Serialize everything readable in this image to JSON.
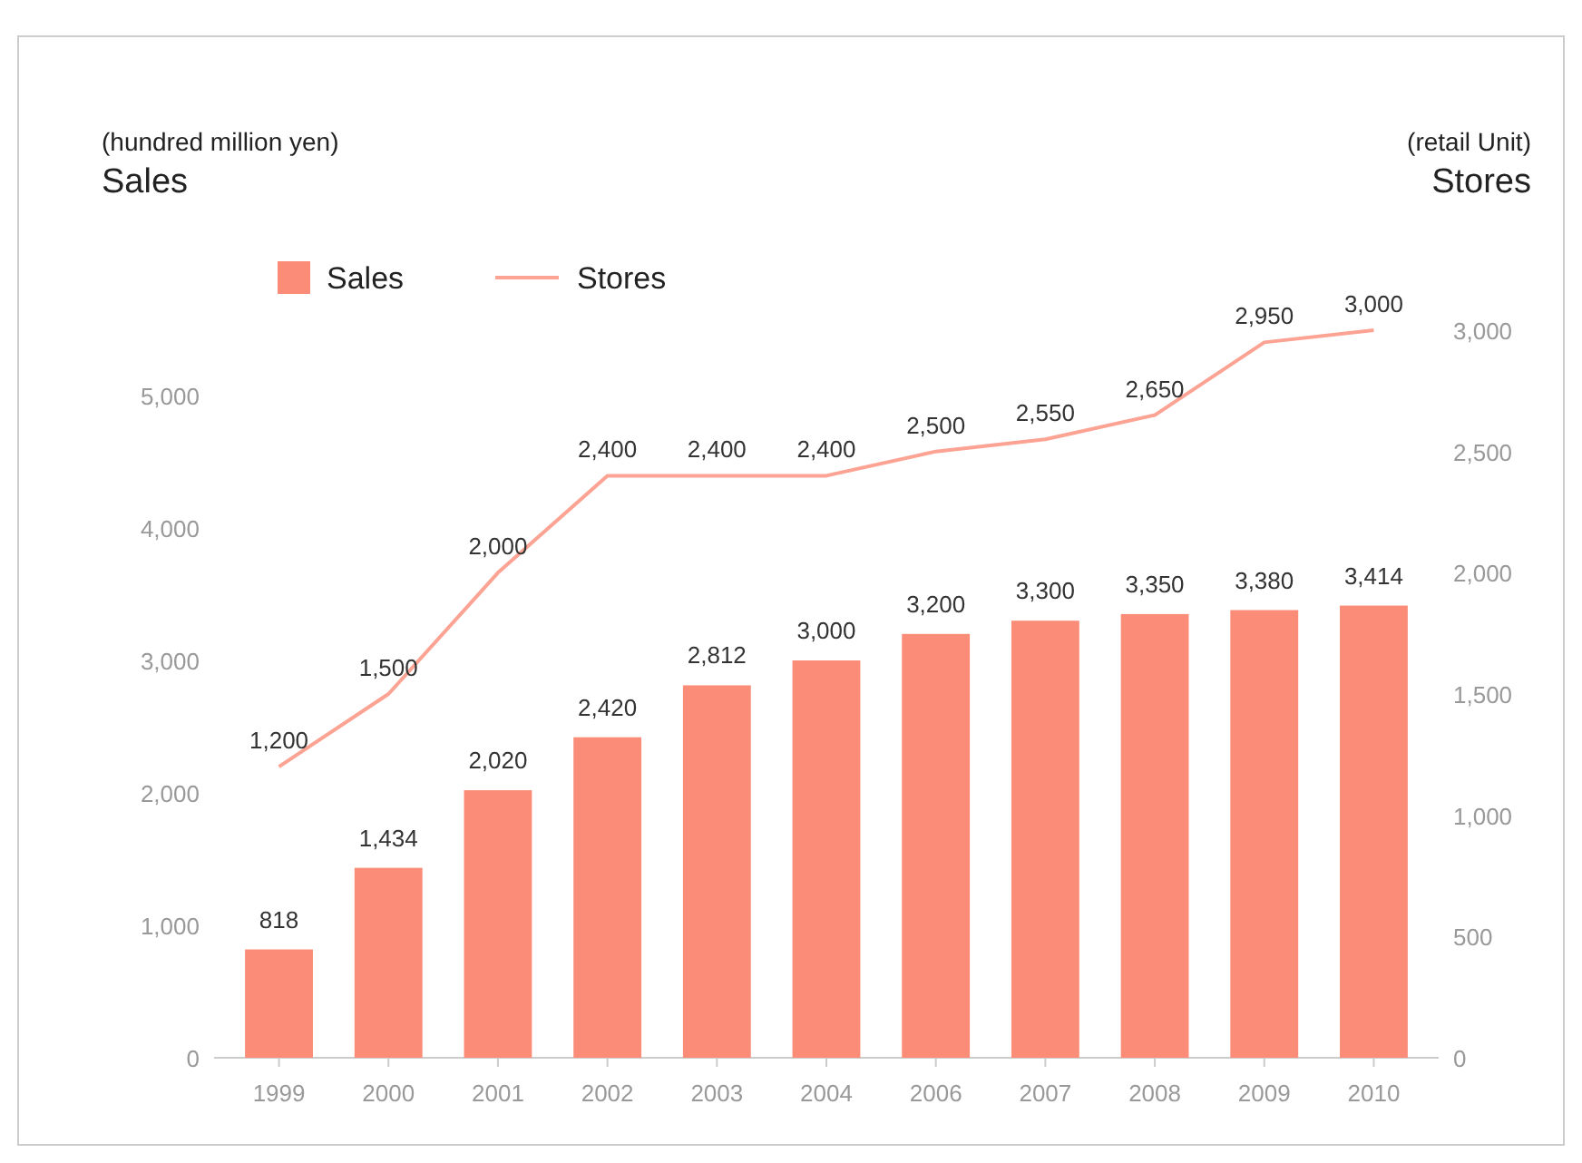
{
  "chart_data": {
    "type": "bar",
    "ylabel": "(hundred million yen)\nSales",
    "y2label": "(retail Unit)\nStores",
    "categories": [
      "1999",
      "2000",
      "2001",
      "2002",
      "2003",
      "2004",
      "2006",
      "2007",
      "2008",
      "2009",
      "2010"
    ],
    "series": [
      {
        "name": "Sales",
        "color": "#fa8c78",
        "values": [
          818,
          1434,
          2020,
          2420,
          2812,
          3000,
          3200,
          3300,
          3350,
          3380,
          3414
        ],
        "value_labels": [
          "818",
          "1,434",
          "2,020",
          "2,420",
          "2,812",
          "3,000",
          "3,200",
          "3,300",
          "3,350",
          "3,380",
          "3,414"
        ]
      },
      {
        "name": "Stores",
        "type": "line",
        "axis": "y2",
        "color": "#fca393",
        "values": [
          1200,
          1500,
          2000,
          2400,
          2400,
          2400,
          2500,
          2550,
          2650,
          2950,
          3000
        ],
        "value_labels": [
          "1,200",
          "1,500",
          "2,000",
          "2,400",
          "2,400",
          "2,400",
          "2,500",
          "2,550",
          "2,650",
          "2,950",
          "3,000"
        ]
      }
    ],
    "ylim": [
      0,
      5000
    ],
    "yticks": [
      0,
      {
        "value": 1000,
        "label": "1,000"
      },
      {
        "value": 2000,
        "label": "2,000"
      },
      {
        "value": 3000,
        "label": "3,000"
      },
      {
        "value": 4000,
        "label": "4,000"
      },
      {
        "value": 5000,
        "label": "5,000"
      }
    ],
    "y2lim": [
      0,
      3000
    ],
    "y2ticks": [
      0,
      500,
      {
        "value": 1000,
        "label": "1,000"
      },
      {
        "value": 1500,
        "label": "1,500"
      },
      {
        "value": 2000,
        "label": "2,000"
      },
      {
        "value": 2500,
        "label": "2,500"
      },
      {
        "value": 3000,
        "label": "3,000"
      }
    ],
    "legend": "top left",
    "grid": false,
    "marker": "none"
  }
}
